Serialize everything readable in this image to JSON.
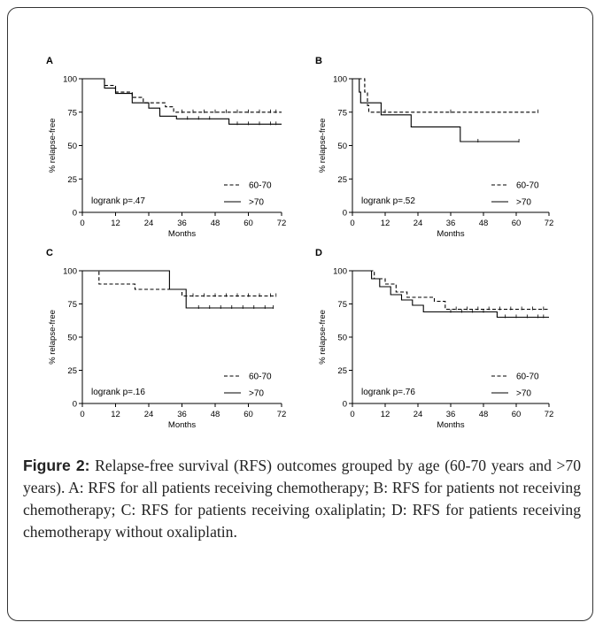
{
  "caption": {
    "label": "Figure 2:",
    "text": " Relapse-free survival (RFS) outcomes grouped by age (60-70 years and >70 years). A: RFS for all patients receiving chemotherapy; B: RFS for patients not receiving chemotherapy; C: RFS for patients receiving oxaliplatin; D: RFS for patients receiving chemotherapy without oxaliplatin."
  },
  "chart_data": [
    {
      "type": "line",
      "panel": "A",
      "xlabel": "Months",
      "ylabel": "% relapse-free",
      "xlim": [
        0,
        72
      ],
      "ylim": [
        0,
        100
      ],
      "x_ticks": [
        0,
        12,
        24,
        36,
        48,
        60,
        72
      ],
      "y_ticks": [
        0,
        25,
        50,
        75,
        100
      ],
      "annotation": "logrank p=.47",
      "legend_position": "bottom-right",
      "series": [
        {
          "name": "60-70",
          "style": "dashed",
          "points": [
            [
              0,
              100
            ],
            [
              7,
              100
            ],
            [
              8,
              95
            ],
            [
              12,
              90
            ],
            [
              18,
              86
            ],
            [
              22,
              82
            ],
            [
              30,
              79
            ],
            [
              33,
              75
            ],
            [
              72,
              75
            ]
          ],
          "censor_x": [
            36,
            40,
            44,
            48,
            52,
            56,
            60,
            64,
            68,
            70
          ]
        },
        {
          "name": ">70",
          "style": "solid",
          "points": [
            [
              0,
              100
            ],
            [
              6,
              100
            ],
            [
              8,
              93
            ],
            [
              12,
              89
            ],
            [
              18,
              82
            ],
            [
              24,
              78
            ],
            [
              28,
              72
            ],
            [
              32,
              72
            ],
            [
              34,
              70
            ],
            [
              52,
              70
            ],
            [
              53,
              66
            ],
            [
              72,
              66
            ]
          ],
          "censor_x": [
            38,
            42,
            46,
            56,
            60,
            64,
            68,
            70
          ]
        }
      ]
    },
    {
      "type": "line",
      "panel": "B",
      "xlabel": "Months",
      "ylabel": "% relapse-free",
      "xlim": [
        0,
        72
      ],
      "ylim": [
        0,
        100
      ],
      "x_ticks": [
        0,
        12,
        24,
        36,
        48,
        60,
        72
      ],
      "y_ticks": [
        0,
        25,
        50,
        75,
        100
      ],
      "annotation": "logrank p=.52",
      "legend_position": "bottom-right",
      "series": [
        {
          "name": "60-70",
          "style": "dashed",
          "points": [
            [
              0,
              100
            ],
            [
              4,
              100
            ],
            [
              4.5,
              90
            ],
            [
              5.5,
              80
            ],
            [
              6,
              75
            ],
            [
              68,
              75
            ]
          ],
          "censor_x": [
            12,
            36,
            68
          ]
        },
        {
          "name": ">70",
          "style": "solid",
          "points": [
            [
              0,
              100
            ],
            [
              2,
              100
            ],
            [
              2.5,
              90
            ],
            [
              3,
              82
            ],
            [
              10,
              82
            ],
            [
              10.5,
              73
            ],
            [
              21,
              73
            ],
            [
              21.5,
              64
            ],
            [
              39,
              64
            ],
            [
              39.5,
              53
            ],
            [
              61,
              53
            ]
          ],
          "censor_x": [
            46,
            61
          ]
        }
      ]
    },
    {
      "type": "line",
      "panel": "C",
      "xlabel": "Months",
      "ylabel": "% relapse-free",
      "xlim": [
        0,
        72
      ],
      "ylim": [
        0,
        100
      ],
      "x_ticks": [
        0,
        12,
        24,
        36,
        48,
        60,
        72
      ],
      "y_ticks": [
        0,
        25,
        50,
        75,
        100
      ],
      "annotation": "logrank p=.16",
      "legend_position": "bottom-right",
      "series": [
        {
          "name": "60-70",
          "style": "dashed",
          "points": [
            [
              0,
              100
            ],
            [
              5,
              100
            ],
            [
              6,
              90
            ],
            [
              18,
              90
            ],
            [
              19,
              86
            ],
            [
              35,
              86
            ],
            [
              36,
              81
            ],
            [
              70,
              81
            ]
          ],
          "censor_x": [
            40,
            44,
            48,
            52,
            56,
            60,
            64,
            68,
            70
          ]
        },
        {
          "name": ">70",
          "style": "solid",
          "points": [
            [
              0,
              100
            ],
            [
              31,
              100
            ],
            [
              31.5,
              86
            ],
            [
              37,
              86
            ],
            [
              37.5,
              72
            ],
            [
              69,
              72
            ]
          ],
          "censor_x": [
            42,
            46,
            50,
            54,
            58,
            62,
            66,
            69
          ]
        }
      ]
    },
    {
      "type": "line",
      "panel": "D",
      "xlabel": "Months",
      "ylabel": "% relapse-free",
      "xlim": [
        0,
        72
      ],
      "ylim": [
        0,
        100
      ],
      "x_ticks": [
        0,
        12,
        24,
        36,
        48,
        60,
        72
      ],
      "y_ticks": [
        0,
        25,
        50,
        75,
        100
      ],
      "annotation": "logrank p=.76",
      "legend_position": "bottom-right",
      "series": [
        {
          "name": "60-70",
          "style": "dashed",
          "points": [
            [
              0,
              100
            ],
            [
              6,
              100
            ],
            [
              8,
              94
            ],
            [
              12,
              90
            ],
            [
              16,
              84
            ],
            [
              20,
              80
            ],
            [
              30,
              77
            ],
            [
              34,
              71
            ],
            [
              72,
              71
            ]
          ],
          "censor_x": [
            38,
            42,
            46,
            50,
            54,
            58,
            62,
            66,
            70
          ]
        },
        {
          "name": ">70",
          "style": "solid",
          "points": [
            [
              0,
              100
            ],
            [
              5,
              100
            ],
            [
              7,
              94
            ],
            [
              10,
              88
            ],
            [
              14,
              82
            ],
            [
              18,
              78
            ],
            [
              22,
              74
            ],
            [
              26,
              69
            ],
            [
              52,
              69
            ],
            [
              53,
              65
            ],
            [
              72,
              65
            ]
          ],
          "censor_x": [
            36,
            40,
            44,
            48,
            56,
            60,
            64,
            68,
            70
          ]
        }
      ]
    }
  ]
}
